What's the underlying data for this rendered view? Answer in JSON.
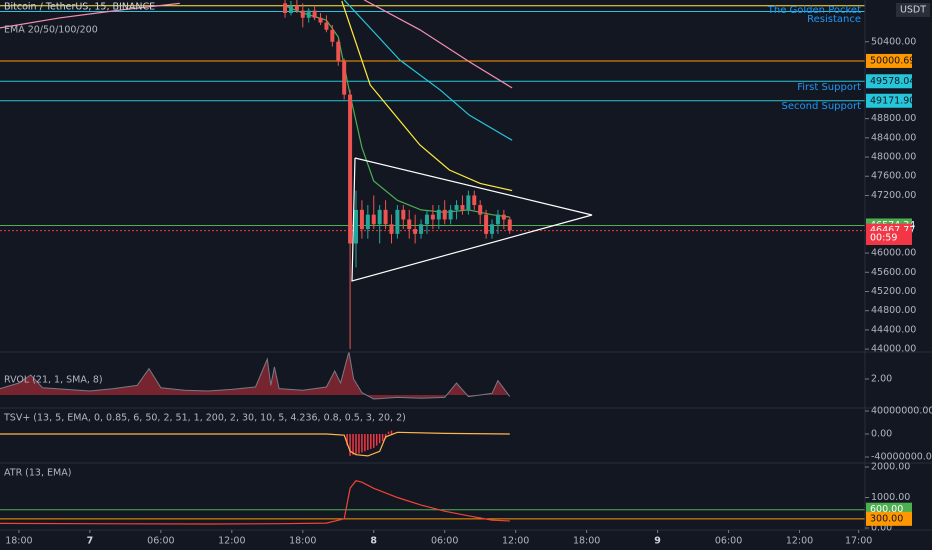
{
  "chart_data": [
    {
      "type": "candlestick",
      "title": "Bitcoin / TetherUS, 15, BINANCE",
      "indicator_label": "EMA 20/50/100/200",
      "currency": "USDT",
      "countdown": "00:59",
      "up_color": "#26a69a",
      "down_color": "#ef5350",
      "xlim": [
        -7.6,
        71.2
      ],
      "xticks": [
        {
          "value": -6,
          "label": "18:00"
        },
        {
          "value": 0,
          "label": "7"
        },
        {
          "value": 6,
          "label": "06:00"
        },
        {
          "value": 12,
          "label": "12:00"
        },
        {
          "value": 18,
          "label": "18:00"
        },
        {
          "value": 24,
          "label": "8"
        },
        {
          "value": 30,
          "label": "06:00"
        },
        {
          "value": 36,
          "label": "12:00"
        },
        {
          "value": 42,
          "label": "18:00"
        },
        {
          "value": 48,
          "label": "9"
        },
        {
          "value": 54,
          "label": "06:00"
        },
        {
          "value": 60,
          "label": "12:00"
        },
        {
          "value": 65,
          "label": "17:00"
        }
      ],
      "ylim": [
        43940,
        51270
      ],
      "yticks": [
        {
          "value": 50400,
          "label": "50400.00"
        },
        {
          "value": 48800,
          "label": "48800.00"
        },
        {
          "value": 48400,
          "label": "48400.00"
        },
        {
          "value": 48000,
          "label": "48000.00"
        },
        {
          "value": 47600,
          "label": "47600.00"
        },
        {
          "value": 47200,
          "label": "47200.00"
        },
        {
          "value": 46000,
          "label": "46000.00"
        },
        {
          "value": 45600,
          "label": "45600.00"
        },
        {
          "value": 45200,
          "label": "45200.00"
        },
        {
          "value": 44800,
          "label": "44800.00"
        },
        {
          "value": 44400,
          "label": "44400.00"
        },
        {
          "value": 44000,
          "label": "44000.00"
        }
      ],
      "x": [
        16.5,
        17,
        17.5,
        18,
        18.5,
        19,
        19.5,
        20,
        20.5,
        21,
        21.5,
        22,
        22.5,
        23,
        23.5,
        24,
        24.5,
        25,
        25.5,
        26,
        26.5,
        27,
        27.5,
        28,
        28.5,
        29,
        29.5,
        30,
        30.5,
        31,
        31.5,
        32,
        32.5,
        33,
        33.5,
        34,
        34.5,
        35,
        35.5
      ],
      "open": [
        51200,
        51000,
        51150,
        51050,
        50900,
        51050,
        50900,
        50800,
        50650,
        50400,
        50000,
        49300,
        46200,
        46900,
        46500,
        46800,
        46600,
        46900,
        46600,
        46400,
        46900,
        46700,
        46500,
        46400,
        46600,
        46800,
        46700,
        46900,
        46700,
        46900,
        47000,
        46900,
        47200,
        47000,
        46800,
        46400,
        46600,
        46800,
        46700
      ],
      "high": [
        51300,
        51250,
        51280,
        51200,
        51100,
        51150,
        51000,
        50950,
        50750,
        50450,
        50050,
        49400,
        47300,
        47100,
        47000,
        47200,
        47000,
        47100,
        46800,
        47000,
        47000,
        46900,
        46800,
        46700,
        46900,
        47000,
        47000,
        47100,
        47000,
        47100,
        47200,
        47300,
        47300,
        47100,
        46900,
        46700,
        46900,
        46900,
        46750
      ],
      "low": [
        50900,
        50950,
        51000,
        50700,
        50800,
        50850,
        50750,
        50600,
        50300,
        49900,
        49200,
        44000,
        45700,
        46300,
        46300,
        46500,
        46200,
        46500,
        46200,
        46300,
        46500,
        46300,
        46200,
        46300,
        46400,
        46500,
        46500,
        46600,
        46600,
        46700,
        46800,
        46800,
        46900,
        46600,
        46300,
        46300,
        46400,
        46500,
        46400
      ],
      "close": [
        51000,
        51150,
        51050,
        50900,
        51050,
        50900,
        50800,
        50650,
        50400,
        50000,
        49300,
        46200,
        46900,
        46500,
        46800,
        46600,
        46900,
        46600,
        46400,
        46900,
        46700,
        46500,
        46400,
        46600,
        46800,
        46700,
        46900,
        46700,
        46900,
        47000,
        46900,
        47200,
        47000,
        46800,
        46400,
        46600,
        46800,
        46700,
        46470
      ],
      "series": [
        {
          "color": "#4caf50",
          "x": [
            16.5,
            18,
            20,
            21,
            22,
            23,
            24,
            26,
            28,
            30,
            32,
            34,
            35.5
          ],
          "values": [
            51150,
            51000,
            50850,
            50500,
            49300,
            48200,
            47500,
            47100,
            46900,
            46850,
            46900,
            46800,
            46750
          ]
        },
        {
          "color": "#ffeb3b",
          "x": [
            21.3,
            23.7,
            27.9,
            30.4,
            33,
            35.7
          ],
          "values": [
            51250,
            49500,
            48250,
            47730,
            47450,
            47300
          ]
        },
        {
          "color": "#26c6da",
          "x": [
            21.5,
            26.2,
            29.6,
            32.1,
            35.7
          ],
          "values": [
            51270,
            50020,
            49400,
            48870,
            48350
          ]
        },
        {
          "color": "#f48fb1",
          "x": [
            -7.6,
            -2.5,
            2.5,
            7.6,
            16,
            23.2,
            27.9,
            32.1,
            35.7
          ],
          "values": [
            50690,
            50900,
            51060,
            51200,
            null,
            51270,
            50650,
            49980,
            49440
          ]
        }
      ],
      "levels": [
        {
          "value": 51150,
          "color": "#ffeb3b"
        },
        {
          "value": 51030,
          "color": "#26c6da"
        },
        {
          "value": 50000.69,
          "label": "50000.69",
          "color": "#ff9800"
        },
        {
          "value": 49578.04,
          "label": "49578.04",
          "color": "#26c6da"
        },
        {
          "value": 49171.9,
          "label": "49171.90",
          "color": "#26c6da"
        },
        {
          "value": 46574.34,
          "label": "46574.34",
          "color": "#4caf50"
        },
        {
          "value": 46467.77,
          "label": "46467.77",
          "color": "#f23645",
          "dashed": true
        }
      ],
      "annotations": [
        "The Golden Pocket",
        "Resistance",
        "First Support",
        "Second Support"
      ]
    },
    {
      "type": "area",
      "title": "RVOL (21, 1, SMA, 8)",
      "color": "#787b86",
      "fill": "#f23645",
      "ylim": [
        -1.625,
        5.375
      ],
      "yticks": [
        {
          "value": 2,
          "label": "2.00"
        }
      ],
      "x": [
        -7.6,
        -6,
        -5,
        -4,
        -2,
        0,
        2,
        4,
        5,
        6,
        8,
        10,
        12,
        14,
        15,
        15.3,
        15.6,
        16,
        18,
        20,
        20.7,
        21.2,
        21.9,
        22.3,
        23,
        24,
        26,
        28,
        30,
        31,
        32,
        34,
        34.5,
        35.5
      ],
      "values": [
        0.8,
        1.5,
        2.5,
        0.9,
        0.7,
        0.5,
        0.8,
        1.2,
        3.3,
        0.9,
        0.6,
        0.5,
        0.7,
        1.0,
        4.5,
        1.2,
        3.5,
        0.8,
        0.6,
        1.0,
        3.0,
        1.5,
        5.4,
        2.0,
        0.3,
        -0.5,
        -0.3,
        -0.4,
        -0.3,
        1.5,
        -0.2,
        0.2,
        1.8,
        -0.2
      ]
    },
    {
      "type": "line",
      "title": "TSV+ (13, 5, EMA, 0, 0.85, 6, 50, 2, 51, 1, 200, 2, 30, 10, 5, 4.236, 0.8, 0.5, 3, 20, 2)",
      "color": "#ffb74d",
      "ylim": [
        -50400000,
        45200000
      ],
      "yticks": [
        {
          "value": 40000000,
          "label": "40000000.00"
        },
        {
          "value": 0,
          "label": "0.00"
        },
        {
          "value": -40000000,
          "label": "-40000000.00"
        }
      ],
      "x": [
        -7.6,
        0,
        10,
        20,
        21.5,
        22,
        22.5,
        23.5,
        24.5,
        25,
        26,
        30,
        35.5
      ],
      "values": [
        0,
        0,
        0,
        0,
        -2000000,
        -30000000,
        -36000000,
        -38000000,
        -30000000,
        -5000000,
        3000000,
        1000000,
        0
      ],
      "bars": {
        "color": "#f23645",
        "x": [
          21.75,
          22,
          22.25,
          22.5,
          22.75,
          23,
          23.25,
          23.5,
          23.75,
          24,
          24.25,
          24.5,
          24.75,
          25,
          25.25,
          25.5
        ],
        "values": [
          -20000000,
          -38000000,
          -36000000,
          -35000000,
          -34000000,
          -32000000,
          -30000000,
          -28000000,
          -26000000,
          -24000000,
          -20000000,
          -16000000,
          -12000000,
          -8000000,
          4000000,
          6000000
        ]
      }
    },
    {
      "type": "line",
      "title": "ATR (13, EMA)",
      "color": "#f44336",
      "ylim": [
        -66,
        2131
      ],
      "yticks": [
        {
          "value": 2000,
          "label": "2000.00"
        },
        {
          "value": 1000,
          "label": "1000.00"
        },
        {
          "value": 0,
          "label": "0.00"
        }
      ],
      "x": [
        -7.6,
        0,
        10,
        16,
        20,
        21.5,
        22,
        22.5,
        23,
        24,
        26,
        28,
        30,
        32,
        34,
        35.5
      ],
      "values": [
        150,
        140,
        130,
        140,
        160,
        300,
        1300,
        1550,
        1500,
        1300,
        1000,
        750,
        550,
        400,
        260,
        230
      ],
      "levels": [
        {
          "value": 600,
          "label": "600.00",
          "color": "#4caf50"
        },
        {
          "value": 300,
          "label": "300.00",
          "color": "#ff9800"
        }
      ]
    }
  ]
}
